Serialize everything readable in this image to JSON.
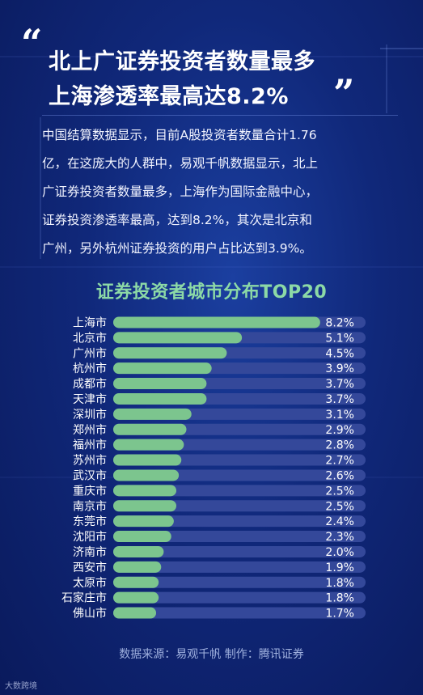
{
  "header": {
    "title_line1": "北上广证券投资者数量最多",
    "title_line2": "上海渗透率最高达8.2%"
  },
  "description": [
    "中国结算数据显示，目前A股投资者数量合计1.76",
    "亿，在这庞大的人群中，易观千帆数据显示，北上",
    "广证券投资者数量最多，上海作为国际金融中心，",
    "证券投资渗透率最高，达到8.2%，其次是北京和",
    "广州，另外杭州证券投资的用户占比达到3.9%。"
  ],
  "chart_data": {
    "type": "bar",
    "orientation": "horizontal",
    "title": "证券投资者城市分布TOP20",
    "categories": [
      "上海市",
      "北京市",
      "广州市",
      "杭州市",
      "成都市",
      "天津市",
      "深圳市",
      "郑州市",
      "福州市",
      "苏州市",
      "武汉市",
      "重庆市",
      "南京市",
      "东莞市",
      "沈阳市",
      "济南市",
      "西安市",
      "太原市",
      "石家庄市",
      "佛山市"
    ],
    "values": [
      8.2,
      5.1,
      4.5,
      3.9,
      3.7,
      3.7,
      3.1,
      2.9,
      2.8,
      2.7,
      2.6,
      2.5,
      2.5,
      2.4,
      2.3,
      2.0,
      1.9,
      1.8,
      1.8,
      1.7
    ],
    "value_labels": [
      "8.2%",
      "5.1%",
      "4.5%",
      "3.9%",
      "3.7%",
      "3.7%",
      "3.1%",
      "2.9%",
      "2.8%",
      "2.7%",
      "2.6%",
      "2.5%",
      "2.5%",
      "2.4%",
      "2.3%",
      "2.0%",
      "1.9%",
      "1.8%",
      "1.8%",
      "1.7%"
    ],
    "xlim": [
      0,
      10
    ],
    "bar_color": "#7cc58e",
    "track_color": "#34489a"
  },
  "footer": {
    "source": "数据来源：易观千帆   制作：腾讯证券"
  },
  "watermark": {
    "text": "大数跨境"
  }
}
